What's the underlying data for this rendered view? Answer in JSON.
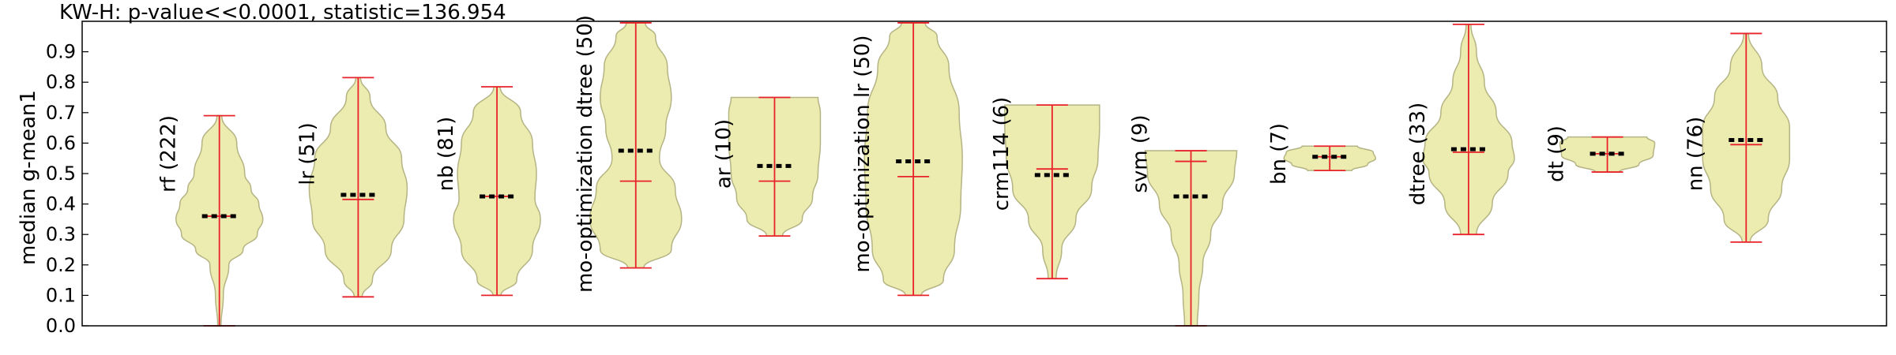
{
  "chart_data": {
    "type": "violin",
    "title": "KW-H: p-value<<0.0001, statistic=136.954",
    "xlabel": "",
    "ylabel": "median g-mean1",
    "ylim": [
      0.0,
      1.0
    ],
    "yticks": [
      0.0,
      0.1,
      0.2,
      0.3,
      0.4,
      0.5,
      0.6,
      0.7,
      0.8,
      0.9
    ],
    "grid": false,
    "colors": {
      "body_fill": "#ecebb0",
      "body_edge": "#b4b484",
      "whisker": "#e8232b",
      "mean_marker": "#000000"
    },
    "categories": [
      {
        "label": "rf (222)",
        "min": 0.0,
        "max": 0.69,
        "median": 0.36,
        "mean": 0.36,
        "width_profile": [
          [
            0.0,
            0.02
          ],
          [
            0.1,
            0.05
          ],
          [
            0.2,
            0.12
          ],
          [
            0.25,
            0.3
          ],
          [
            0.3,
            0.48
          ],
          [
            0.35,
            0.55
          ],
          [
            0.4,
            0.5
          ],
          [
            0.45,
            0.4
          ],
          [
            0.5,
            0.32
          ],
          [
            0.6,
            0.22
          ],
          [
            0.69,
            0.03
          ]
        ]
      },
      {
        "label": "lr (51)",
        "min": 0.095,
        "max": 0.815,
        "median": 0.415,
        "mean": 0.43,
        "width_profile": [
          [
            0.095,
            0.05
          ],
          [
            0.15,
            0.18
          ],
          [
            0.25,
            0.42
          ],
          [
            0.35,
            0.58
          ],
          [
            0.45,
            0.62
          ],
          [
            0.55,
            0.55
          ],
          [
            0.65,
            0.35
          ],
          [
            0.75,
            0.15
          ],
          [
            0.815,
            0.03
          ]
        ]
      },
      {
        "label": "nb (81)",
        "min": 0.1,
        "max": 0.785,
        "median": 0.425,
        "mean": 0.425,
        "width_profile": [
          [
            0.1,
            0.05
          ],
          [
            0.15,
            0.25
          ],
          [
            0.25,
            0.45
          ],
          [
            0.35,
            0.55
          ],
          [
            0.42,
            0.48
          ],
          [
            0.5,
            0.5
          ],
          [
            0.6,
            0.45
          ],
          [
            0.7,
            0.3
          ],
          [
            0.785,
            0.04
          ]
        ]
      },
      {
        "label": "mo-optimization dtree (50)",
        "min": 0.19,
        "max": 0.995,
        "median": 0.475,
        "mean": 0.575,
        "width_profile": [
          [
            0.19,
            0.1
          ],
          [
            0.25,
            0.45
          ],
          [
            0.35,
            0.58
          ],
          [
            0.45,
            0.5
          ],
          [
            0.55,
            0.3
          ],
          [
            0.65,
            0.38
          ],
          [
            0.75,
            0.45
          ],
          [
            0.85,
            0.4
          ],
          [
            0.95,
            0.25
          ],
          [
            0.995,
            0.12
          ]
        ]
      },
      {
        "label": "ar (10)",
        "min": 0.295,
        "max": 0.75,
        "median": 0.475,
        "mean": 0.525,
        "width_profile": [
          [
            0.295,
            0.1
          ],
          [
            0.35,
            0.35
          ],
          [
            0.42,
            0.48
          ],
          [
            0.5,
            0.55
          ],
          [
            0.6,
            0.58
          ],
          [
            0.7,
            0.58
          ],
          [
            0.75,
            0.55
          ]
        ]
      },
      {
        "label": "mo-optimization lr (50)",
        "min": 0.1,
        "max": 0.995,
        "median": 0.49,
        "mean": 0.54,
        "width_profile": [
          [
            0.1,
            0.1
          ],
          [
            0.15,
            0.38
          ],
          [
            0.25,
            0.52
          ],
          [
            0.4,
            0.6
          ],
          [
            0.55,
            0.62
          ],
          [
            0.7,
            0.58
          ],
          [
            0.85,
            0.45
          ],
          [
            0.95,
            0.3
          ],
          [
            0.995,
            0.15
          ]
        ]
      },
      {
        "label": "crm114 (6)",
        "min": 0.155,
        "max": 0.725,
        "median": 0.515,
        "mean": 0.495,
        "width_profile": [
          [
            0.155,
            0.05
          ],
          [
            0.25,
            0.12
          ],
          [
            0.35,
            0.3
          ],
          [
            0.45,
            0.5
          ],
          [
            0.55,
            0.58
          ],
          [
            0.65,
            0.6
          ],
          [
            0.725,
            0.6
          ]
        ]
      },
      {
        "label": "svm (9)",
        "min": 0.0,
        "max": 0.575,
        "median": 0.54,
        "mean": 0.425,
        "width_profile": [
          [
            0.0,
            0.08
          ],
          [
            0.1,
            0.1
          ],
          [
            0.2,
            0.15
          ],
          [
            0.3,
            0.25
          ],
          [
            0.4,
            0.4
          ],
          [
            0.5,
            0.55
          ],
          [
            0.575,
            0.58
          ]
        ]
      },
      {
        "label": "bn (7)",
        "min": 0.51,
        "max": 0.59,
        "median": 0.555,
        "mean": 0.555,
        "width_profile": [
          [
            0.51,
            0.28
          ],
          [
            0.53,
            0.48
          ],
          [
            0.55,
            0.58
          ],
          [
            0.57,
            0.55
          ],
          [
            0.59,
            0.35
          ]
        ]
      },
      {
        "label": "dtree (33)",
        "min": 0.3,
        "max": 0.99,
        "median": 0.57,
        "mean": 0.58,
        "width_profile": [
          [
            0.3,
            0.1
          ],
          [
            0.4,
            0.3
          ],
          [
            0.5,
            0.5
          ],
          [
            0.55,
            0.58
          ],
          [
            0.6,
            0.55
          ],
          [
            0.7,
            0.35
          ],
          [
            0.8,
            0.2
          ],
          [
            0.9,
            0.1
          ],
          [
            0.99,
            0.03
          ]
        ]
      },
      {
        "label": "dt (9)",
        "min": 0.505,
        "max": 0.62,
        "median": 0.565,
        "mean": 0.565,
        "width_profile": [
          [
            0.505,
            0.15
          ],
          [
            0.53,
            0.4
          ],
          [
            0.56,
            0.58
          ],
          [
            0.6,
            0.6
          ],
          [
            0.62,
            0.5
          ]
        ]
      },
      {
        "label": "nn (76)",
        "min": 0.275,
        "max": 0.96,
        "median": 0.595,
        "mean": 0.61,
        "width_profile": [
          [
            0.275,
            0.05
          ],
          [
            0.35,
            0.28
          ],
          [
            0.45,
            0.45
          ],
          [
            0.55,
            0.55
          ],
          [
            0.65,
            0.55
          ],
          [
            0.75,
            0.4
          ],
          [
            0.85,
            0.2
          ],
          [
            0.96,
            0.03
          ]
        ]
      }
    ]
  }
}
